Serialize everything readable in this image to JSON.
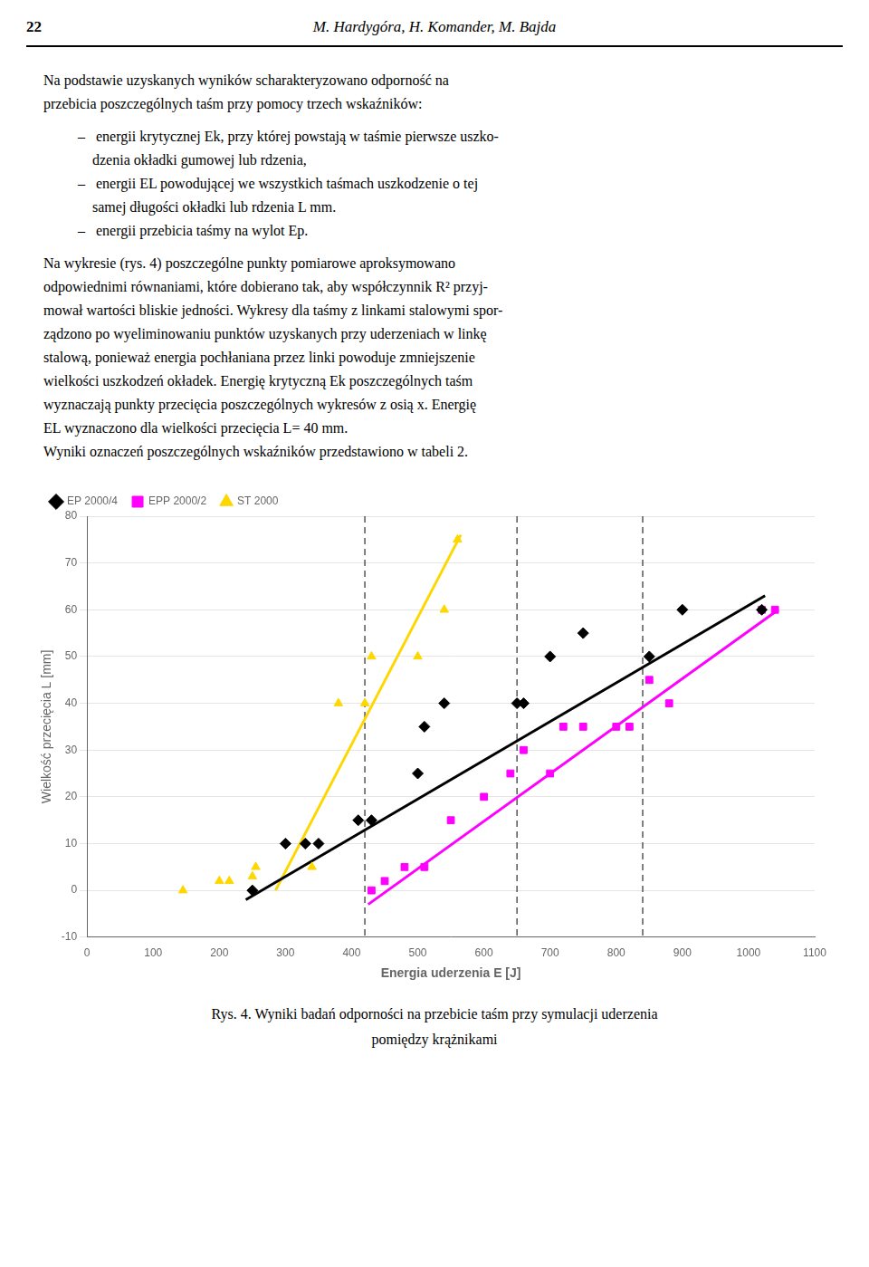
{
  "page_number": "22",
  "header": "M. Hardygóra, H. Komander, M. Bajda",
  "body_text": [
    [
      "Na podstawie uzyskanych wyników scharakteryzowano odporność na",
      "przebicia poszczególnych taśm przy pomocy trzech wskaźników:"
    ],
    [
      "–   energii krytycznej Ek, przy której powstają w taśmie pierwsze uszko-",
      "    dzenia okładki gumowej lub rdzenia,",
      "–   energii EL powodującej we wszystkich taśmach uszkodzenie o tej",
      "    samej długości okładki lub rdzenia L mm.",
      "–   energii przebicia taśmy na wylot Ep."
    ],
    [
      "Na wykresie (rys. 4) poszczególne punkty pomiarowe aproksymowano",
      "odpowiednimi równaniami, które dobierano tak, aby współczynnik R² przyj-",
      "mował wartości bliskie jedności. Wykresy dla taśmy z linkami stalowymi spor-",
      "ządzono po wyeliminowaniu punktów uzyskanych przy uderzeniach w linkę",
      "stalową, ponieważ energia pochłaniana przez linki powoduje zmniejszenie",
      "wielkości uszkodzeń okładek. Energię krytyczną Ek poszczególnych taśm",
      "wyznaczają punkty przecięcia poszczególnych wykresów z osią x. Energię",
      "EL wyznaczono dla wielkości przecięcia L= 40 mm.",
      "Wyniki oznaczeń poszczególnych wskaźników przedstawiono w tabeli 2."
    ]
  ],
  "caption": [
    "Rys. 4. Wyniki badań odporności na przebicie taśm przy symulacji uderzenia",
    "pomiędzy krążnikami"
  ],
  "chart_data": {
    "type": "scatter",
    "xlabel": "Energia uderzenia E [J]",
    "ylabel": "Wielkość przecięcia L [mm]",
    "xlim": [
      0,
      1100
    ],
    "ylim": [
      -10,
      80
    ],
    "xticks": [
      0,
      100,
      200,
      300,
      400,
      500,
      600,
      700,
      800,
      900,
      1000,
      1100
    ],
    "yticks": [
      -10,
      0,
      10,
      20,
      30,
      40,
      50,
      60,
      70,
      80
    ],
    "grid": "y",
    "legend": "upper left",
    "series": [
      {
        "name": "EP 2000/4",
        "color": "#000000",
        "marker": "diamond",
        "x": [
          250,
          300,
          330,
          350,
          410,
          430,
          500,
          510,
          540,
          650,
          660,
          700,
          750,
          850,
          900,
          1020
        ],
        "values": [
          0,
          10,
          10,
          10,
          15,
          15,
          25,
          35,
          40,
          40,
          40,
          50,
          55,
          50,
          60,
          60
        ],
        "fit": {
          "x": [
            240,
            1025
          ],
          "values": [
            -2,
            63
          ]
        }
      },
      {
        "name": "EPP 2000/2",
        "color": "#ff00ff",
        "marker": "square",
        "x": [
          430,
          450,
          480,
          510,
          550,
          600,
          640,
          660,
          700,
          720,
          750,
          800,
          820,
          850,
          880,
          1020,
          1040
        ],
        "values": [
          0,
          2,
          5,
          5,
          15,
          20,
          25,
          30,
          25,
          35,
          35,
          35,
          35,
          45,
          40,
          60,
          60
        ],
        "fit": {
          "x": [
            425,
            1045
          ],
          "values": [
            -3,
            60
          ]
        }
      },
      {
        "name": "ST 2000",
        "color": "#ffd700",
        "marker": "triangle",
        "x": [
          145,
          200,
          215,
          250,
          255,
          340,
          380,
          420,
          430,
          500,
          540,
          560
        ],
        "values": [
          0,
          2,
          2,
          3,
          5,
          5,
          40,
          40,
          50,
          50,
          60,
          75
        ],
        "fit": {
          "x": [
            285,
            565
          ],
          "values": [
            0,
            76
          ]
        }
      }
    ],
    "vertical_lines": {
      "x": [
        420,
        650,
        840
      ],
      "color": "#555555",
      "line_style": "dashed"
    }
  }
}
